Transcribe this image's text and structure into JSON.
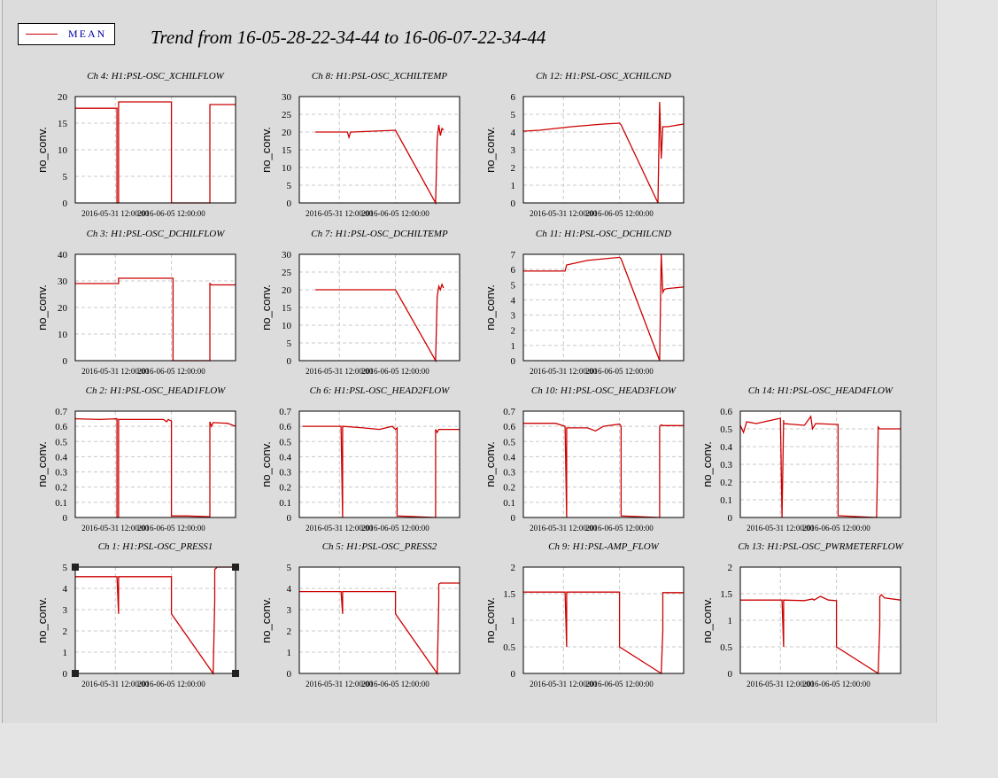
{
  "legend": {
    "label": "MEAN",
    "color": "#cc0000"
  },
  "title": "Trend from 16-05-28-22-34-44 to 16-06-07-22-34-44",
  "chart_data": [
    {
      "type": "line",
      "title": "Ch 4: H1:PSL-OSC_XCHILFLOW",
      "ylabel": "no_conv.",
      "ylim": [
        0,
        20
      ],
      "yticks": [
        "0",
        "5",
        "10",
        "15",
        "20"
      ],
      "xticks": [
        "2016-05-31 12:00:00",
        "2016-06-05 12:00:00"
      ],
      "series": [
        {
          "x": [
            0,
            0.26,
            0.26,
            0.27,
            0.27,
            0.6,
            0.6,
            0.84,
            0.84,
            0.85,
            0.85,
            1
          ],
          "y": [
            17.8,
            17.8,
            0,
            0,
            19,
            19,
            0,
            0,
            18.5,
            18.5,
            18.5,
            18.5
          ]
        }
      ]
    },
    {
      "type": "line",
      "title": "Ch 8: H1:PSL-OSC_XCHILTEMP",
      "ylabel": "no_conv.",
      "ylim": [
        0,
        30
      ],
      "yticks": [
        "0",
        "5",
        "10",
        "15",
        "20",
        "25",
        "30"
      ],
      "xticks": [
        "2016-05-31 12:00:00",
        "2016-06-05 12:00:00"
      ],
      "series": [
        {
          "x": [
            0.1,
            0.3,
            0.31,
            0.32,
            0.33,
            0.6,
            0.85,
            0.86,
            0.87,
            0.88,
            0.89,
            0.9
          ],
          "y": [
            20,
            20,
            18.5,
            20,
            20,
            20.5,
            0,
            18,
            22,
            19,
            21,
            20.5
          ]
        }
      ]
    },
    {
      "type": "line",
      "title": "Ch 12: H1:PSL-OSC_XCHILCND",
      "ylabel": "no_conv.",
      "ylim": [
        0,
        6
      ],
      "yticks": [
        "0",
        "1",
        "2",
        "3",
        "4",
        "5",
        "6"
      ],
      "xticks": [
        "2016-05-31 12:00:00",
        "2016-06-05 12:00:00"
      ],
      "series": [
        {
          "x": [
            0,
            0.1,
            0.3,
            0.5,
            0.6,
            0.61,
            0.84,
            0.85,
            0.86,
            0.87,
            0.9,
            1
          ],
          "y": [
            4.05,
            4.1,
            4.3,
            4.45,
            4.5,
            4.4,
            0,
            5.7,
            2.5,
            4.3,
            4.3,
            4.45
          ]
        }
      ]
    },
    {
      "type": "line",
      "title": "Ch 3: H1:PSL-OSC_DCHILFLOW",
      "ylabel": "no_conv.",
      "ylim": [
        0,
        40
      ],
      "yticks": [
        "0",
        "10",
        "20",
        "30",
        "40"
      ],
      "xticks": [
        "2016-05-31 12:00:00",
        "2016-06-05 12:00:00"
      ],
      "series": [
        {
          "x": [
            0,
            0.27,
            0.27,
            0.6,
            0.61,
            0.61,
            0.84,
            0.84,
            0.85,
            0.86,
            1
          ],
          "y": [
            29,
            29,
            31,
            31,
            31,
            0,
            0,
            29,
            28.5,
            28.5,
            28.5
          ]
        }
      ]
    },
    {
      "type": "line",
      "title": "Ch 7: H1:PSL-OSC_DCHILTEMP",
      "ylabel": "no_conv.",
      "ylim": [
        0,
        30
      ],
      "yticks": [
        "0",
        "5",
        "10",
        "15",
        "20",
        "25",
        "30"
      ],
      "xticks": [
        "2016-05-31 12:00:00",
        "2016-06-05 12:00:00"
      ],
      "series": [
        {
          "x": [
            0.1,
            0.3,
            0.6,
            0.85,
            0.86,
            0.87,
            0.88,
            0.89,
            0.9
          ],
          "y": [
            20,
            20,
            20,
            0,
            18,
            21,
            20,
            21.5,
            20.5
          ]
        }
      ]
    },
    {
      "type": "line",
      "title": "Ch 11: H1:PSL-OSC_DCHILCND",
      "ylabel": "no_conv.",
      "ylim": [
        0,
        7
      ],
      "yticks": [
        "0",
        "1",
        "2",
        "3",
        "4",
        "5",
        "6",
        "7"
      ],
      "xticks": [
        "2016-05-31 12:00:00",
        "2016-06-05 12:00:00"
      ],
      "series": [
        {
          "x": [
            0,
            0.26,
            0.27,
            0.4,
            0.6,
            0.61,
            0.85,
            0.86,
            0.87,
            0.88,
            0.9,
            1
          ],
          "y": [
            5.9,
            5.9,
            6.3,
            6.6,
            6.8,
            6.7,
            0,
            7,
            4.5,
            4.7,
            4.75,
            4.85
          ]
        }
      ]
    },
    {
      "type": "line",
      "title": "Ch 2: H1:PSL-OSC_HEAD1FLOW",
      "ylabel": "no_conv.",
      "ylim": [
        0,
        0.7
      ],
      "yticks": [
        "0",
        "0.1",
        "0.2",
        "0.3",
        "0.4",
        "0.5",
        "0.6",
        "0.7"
      ],
      "xticks": [
        "2016-05-31 12:00:00",
        "2016-06-05 12:00:00"
      ],
      "series": [
        {
          "x": [
            0,
            0.15,
            0.26,
            0.26,
            0.27,
            0.27,
            0.55,
            0.57,
            0.58,
            0.6,
            0.6,
            0.7,
            0.84,
            0.84,
            0.85,
            0.86,
            0.95,
            1
          ],
          "y": [
            0.65,
            0.645,
            0.65,
            0,
            0,
            0.645,
            0.645,
            0.63,
            0.645,
            0.635,
            0.01,
            0.01,
            0.005,
            0.63,
            0.6,
            0.625,
            0.62,
            0.6
          ]
        }
      ]
    },
    {
      "type": "line",
      "title": "Ch 6: H1:PSL-OSC_HEAD2FLOW",
      "ylabel": "no_conv.",
      "ylim": [
        0,
        0.7
      ],
      "yticks": [
        "0",
        "0.1",
        "0.2",
        "0.3",
        "0.4",
        "0.5",
        "0.6",
        "0.7"
      ],
      "xticks": [
        "2016-05-31 12:00:00",
        "2016-06-05 12:00:00"
      ],
      "series": [
        {
          "x": [
            0.02,
            0.26,
            0.27,
            0.27,
            0.4,
            0.5,
            0.58,
            0.6,
            0.61,
            0.61,
            0.85,
            0.85,
            0.86,
            0.87,
            1
          ],
          "y": [
            0.6,
            0.6,
            0,
            0.6,
            0.59,
            0.58,
            0.6,
            0.58,
            0.59,
            0.01,
            0,
            0.58,
            0.56,
            0.58,
            0.58
          ]
        }
      ]
    },
    {
      "type": "line",
      "title": "Ch 10: H1:PSL-OSC_HEAD3FLOW",
      "ylabel": "no_conv.",
      "ylim": [
        0,
        0.7
      ],
      "yticks": [
        "0",
        "0.1",
        "0.2",
        "0.3",
        "0.4",
        "0.5",
        "0.6",
        "0.7"
      ],
      "xticks": [
        "2016-05-31 12:00:00",
        "2016-06-05 12:00:00"
      ],
      "series": [
        {
          "x": [
            0,
            0.2,
            0.26,
            0.27,
            0.27,
            0.4,
            0.45,
            0.5,
            0.6,
            0.61,
            0.61,
            0.85,
            0.85,
            0.86,
            0.87,
            1
          ],
          "y": [
            0.62,
            0.62,
            0.6,
            0,
            0.59,
            0.59,
            0.57,
            0.6,
            0.615,
            0.6,
            0.01,
            0,
            0.6,
            0.61,
            0.605,
            0.605
          ]
        }
      ]
    },
    {
      "type": "line",
      "title": "Ch 14: H1:PSL-OSC_HEAD4FLOW",
      "ylabel": "no_conv.",
      "ylim": [
        0,
        0.6
      ],
      "yticks": [
        "0",
        "0.1",
        "0.2",
        "0.3",
        "0.4",
        "0.5",
        "0.6"
      ],
      "xticks": [
        "2016-05-31 12:00:00",
        "2016-06-05 12:00:00"
      ],
      "series": [
        {
          "x": [
            0,
            0.02,
            0.04,
            0.1,
            0.2,
            0.25,
            0.26,
            0.27,
            0.27,
            0.4,
            0.44,
            0.45,
            0.47,
            0.6,
            0.61,
            0.61,
            0.85,
            0.86,
            0.86,
            0.87,
            1
          ],
          "y": [
            0.52,
            0.48,
            0.54,
            0.53,
            0.55,
            0.56,
            0,
            0.55,
            0.53,
            0.52,
            0.57,
            0.5,
            0.53,
            0.525,
            0.525,
            0.01,
            0,
            0.49,
            0.51,
            0.5,
            0.5
          ]
        }
      ]
    },
    {
      "type": "line",
      "title": "Ch 1: H1:PSL-OSC_PRESS1",
      "ylabel": "no_conv.",
      "ylim": [
        0,
        5
      ],
      "yticks": [
        "0",
        "1",
        "2",
        "3",
        "4",
        "5"
      ],
      "xticks": [
        "2016-05-31 12:00:00",
        "2016-06-05 12:00:00"
      ],
      "series": [
        {
          "x": [
            0,
            0.26,
            0.27,
            0.27,
            0.6,
            0.6,
            0.86,
            0.87,
            0.87,
            0.88,
            0.88,
            1
          ],
          "y": [
            4.55,
            4.55,
            2.8,
            4.55,
            4.55,
            2.8,
            0,
            3.4,
            4.9,
            4.95,
            5,
            5
          ]
        }
      ]
    },
    {
      "type": "line",
      "title": "Ch 5: H1:PSL-OSC_PRESS2",
      "ylabel": "no_conv.",
      "ylim": [
        0,
        5
      ],
      "yticks": [
        "0",
        "1",
        "2",
        "3",
        "4",
        "5"
      ],
      "xticks": [
        "2016-05-31 12:00:00",
        "2016-06-05 12:00:00"
      ],
      "series": [
        {
          "x": [
            0,
            0.26,
            0.27,
            0.27,
            0.6,
            0.6,
            0.86,
            0.87,
            0.87,
            0.88,
            0.88,
            1
          ],
          "y": [
            3.85,
            3.85,
            2.8,
            3.85,
            3.85,
            2.8,
            0,
            3.4,
            4.2,
            4.25,
            4.25,
            4.25
          ]
        }
      ]
    },
    {
      "type": "line",
      "title": "Ch 9: H1:PSL-AMP_FLOW",
      "ylabel": "no_conv.",
      "ylim": [
        0,
        2
      ],
      "yticks": [
        "0",
        "0.5",
        "1",
        "1.5",
        "2"
      ],
      "xticks": [
        "2016-05-31 12:00:00",
        "2016-06-05 12:00:00"
      ],
      "series": [
        {
          "x": [
            0,
            0.26,
            0.27,
            0.27,
            0.6,
            0.6,
            0.86,
            0.87,
            0.87,
            0.88,
            1
          ],
          "y": [
            1.53,
            1.53,
            0.5,
            1.53,
            1.53,
            0.5,
            0,
            0.8,
            1.52,
            1.52,
            1.52
          ]
        }
      ]
    },
    {
      "type": "line",
      "title": "Ch 13: H1:PSL-OSC_PWRMETERFLOW",
      "ylabel": "no_conv.",
      "ylim": [
        0,
        2
      ],
      "yticks": [
        "0",
        "0.5",
        "1",
        "1.5",
        "2"
      ],
      "xticks": [
        "2016-05-31 12:00:00",
        "2016-06-05 12:00:00"
      ],
      "series": [
        {
          "x": [
            0,
            0.2,
            0.26,
            0.27,
            0.27,
            0.4,
            0.45,
            0.46,
            0.5,
            0.55,
            0.6,
            0.6,
            0.86,
            0.87,
            0.87,
            0.88,
            0.9,
            1
          ],
          "y": [
            1.38,
            1.38,
            1.38,
            0.5,
            1.38,
            1.37,
            1.4,
            1.38,
            1.45,
            1.38,
            1.37,
            0.5,
            0,
            0.9,
            1.45,
            1.48,
            1.42,
            1.38
          ]
        }
      ]
    }
  ]
}
